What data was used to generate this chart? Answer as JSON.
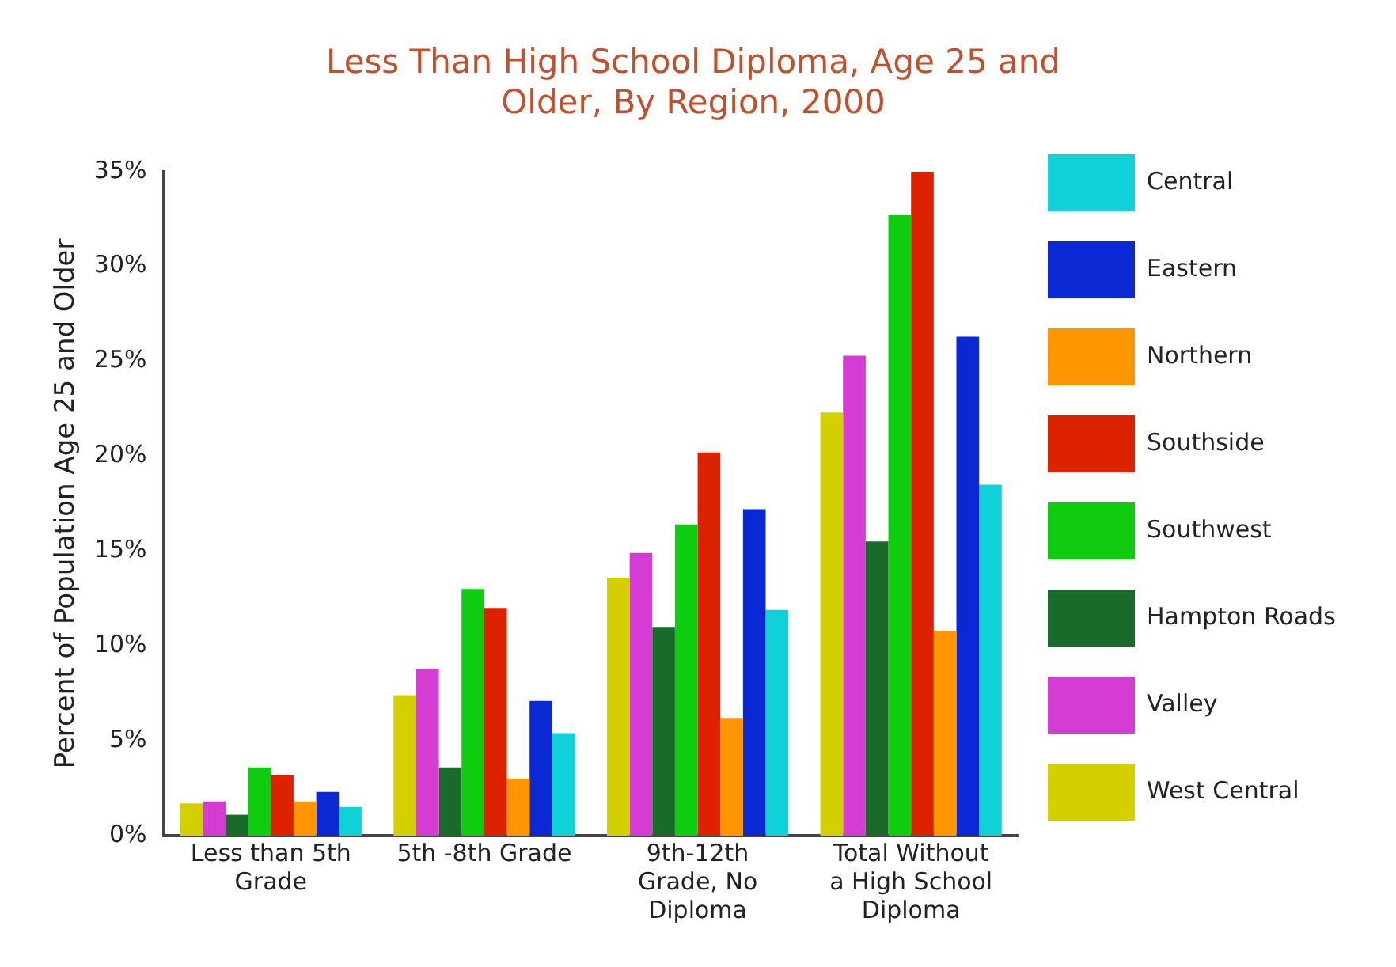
{
  "chart_data": {
    "type": "bar",
    "title": "Less Than High School Diploma, Age 25 and Older, By Region, 2000",
    "ylabel": "Percent of Population Age 25 and Older",
    "categories": [
      "Less than 5th Grade",
      "5th -8th Grade",
      "9th-12th Grade, No Diploma",
      "Total Without a High School Diploma"
    ],
    "series": [
      {
        "name": "West Central",
        "color": "#d4d000",
        "values": [
          1.7,
          7.4,
          13.6,
          22.3
        ]
      },
      {
        "name": "Valley",
        "color": "#d43cd4",
        "values": [
          1.8,
          8.8,
          14.9,
          25.3
        ]
      },
      {
        "name": "Hampton Roads",
        "color": "#1a6a2a",
        "values": [
          1.1,
          3.6,
          11.0,
          15.5
        ]
      },
      {
        "name": "Southwest",
        "color": "#10cc10",
        "values": [
          3.6,
          13.0,
          16.4,
          32.7
        ]
      },
      {
        "name": "Southside",
        "color": "#dd2200",
        "values": [
          3.2,
          12.0,
          20.2,
          35.0
        ]
      },
      {
        "name": "Northern",
        "color": "#ff9500",
        "values": [
          1.8,
          3.0,
          6.2,
          10.8
        ]
      },
      {
        "name": "Eastern",
        "color": "#0a28d4",
        "values": [
          2.3,
          7.1,
          17.2,
          26.3
        ]
      },
      {
        "name": "Central",
        "color": "#10d0d8",
        "values": [
          1.5,
          5.4,
          11.9,
          18.5
        ]
      }
    ],
    "ylim": [
      0,
      35
    ],
    "yticks": [
      {
        "value": 0,
        "label": "0%"
      },
      {
        "value": 5,
        "label": "5%"
      },
      {
        "value": 10,
        "label": "10%"
      },
      {
        "value": 15,
        "label": "15%"
      },
      {
        "value": 20,
        "label": "20%"
      },
      {
        "value": 25,
        "label": "25%"
      },
      {
        "value": 30,
        "label": "30%"
      },
      {
        "value": 35,
        "label": "35%"
      }
    ],
    "grid": false,
    "legend": "right"
  }
}
